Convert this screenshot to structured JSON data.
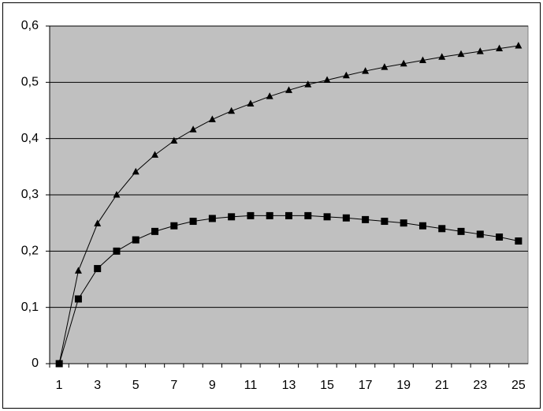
{
  "chart_data": {
    "type": "line",
    "categories": [
      1,
      null,
      3,
      null,
      5,
      null,
      7,
      null,
      9,
      null,
      11,
      null,
      13,
      null,
      15,
      null,
      17,
      null,
      19,
      null,
      21,
      null,
      23,
      null,
      25
    ],
    "series": [
      {
        "color": "#000000",
        "marker": "triangle",
        "values": [
          0,
          0.165,
          0.249,
          0.3,
          0.341,
          0.371,
          0.396,
          0.416,
          0.434,
          0.449,
          0.462,
          0.475,
          0.486,
          0.496,
          0.504,
          0.512,
          0.52,
          0.527,
          0.533,
          0.539,
          0.545,
          0.55,
          0.555,
          0.56,
          0.565
        ]
      },
      {
        "color": "#000000",
        "marker": "square",
        "values": [
          0,
          0.115,
          0.169,
          0.2,
          0.22,
          0.235,
          0.245,
          0.253,
          0.258,
          0.261,
          0.263,
          0.263,
          0.263,
          0.263,
          0.261,
          0.259,
          0.256,
          0.253,
          0.25,
          0.245,
          0.24,
          0.235,
          0.23,
          0.225,
          0.218
        ]
      }
    ],
    "ylim": [
      0,
      0.6
    ],
    "yticks": [
      0,
      {
        "value": 0.1,
        "label": "0,1"
      },
      {
        "value": 0.2,
        "label": "0,2"
      },
      {
        "value": 0.3,
        "label": "0,3"
      },
      {
        "value": 0.4,
        "label": "0,4"
      },
      {
        "value": 0.5,
        "label": "0,5"
      },
      {
        "value": 0.6,
        "label": "0,6"
      }
    ],
    "grid": true,
    "plot_background": "#c0c0c0"
  }
}
